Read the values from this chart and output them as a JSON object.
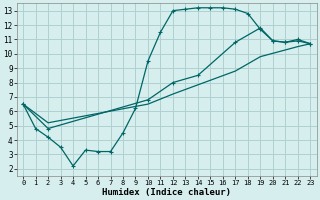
{
  "xlabel": "Humidex (Indice chaleur)",
  "background_color": "#d6eeee",
  "grid_color": "#b0d0d0",
  "line_color": "#006666",
  "xlim": [
    -0.5,
    23.5
  ],
  "ylim": [
    1.5,
    13.5
  ],
  "xticks": [
    0,
    1,
    2,
    3,
    4,
    5,
    6,
    7,
    8,
    9,
    10,
    11,
    12,
    13,
    14,
    15,
    16,
    17,
    18,
    19,
    20,
    21,
    22,
    23
  ],
  "yticks": [
    2,
    3,
    4,
    5,
    6,
    7,
    8,
    9,
    10,
    11,
    12,
    13
  ],
  "curve1_x": [
    0,
    1,
    2,
    3,
    4,
    5,
    6,
    7,
    8,
    9,
    10,
    11,
    12,
    13,
    14,
    15,
    16,
    17,
    18,
    19,
    20,
    21,
    22,
    23
  ],
  "curve1_y": [
    6.5,
    4.8,
    4.2,
    3.5,
    2.2,
    3.3,
    3.2,
    3.2,
    4.5,
    6.2,
    9.5,
    11.5,
    13.0,
    13.1,
    13.2,
    13.2,
    13.2,
    13.1,
    12.8,
    11.7,
    10.9,
    10.8,
    11.0,
    10.7
  ],
  "curve2_x": [
    0,
    2,
    10,
    12,
    14,
    17,
    19,
    20,
    21,
    22,
    23
  ],
  "curve2_y": [
    6.5,
    4.8,
    6.8,
    8.0,
    8.5,
    10.8,
    11.8,
    10.9,
    10.8,
    10.9,
    10.7
  ],
  "curve3_x": [
    0,
    2,
    10,
    12,
    17,
    19,
    22,
    23
  ],
  "curve3_y": [
    6.5,
    5.2,
    6.5,
    7.2,
    8.8,
    9.8,
    10.5,
    10.7
  ]
}
